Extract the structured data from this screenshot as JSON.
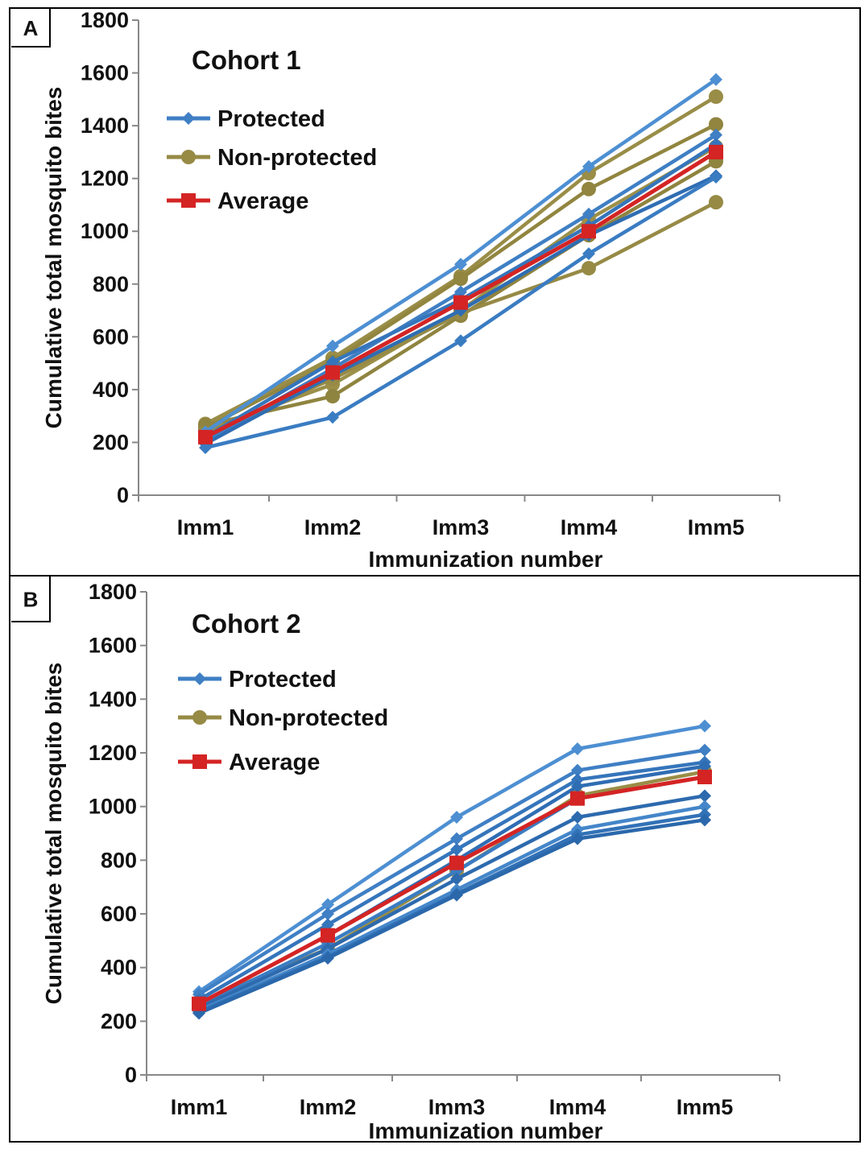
{
  "chart_data": [
    {
      "type": "line",
      "panel": "A",
      "title": "Cohort 1",
      "xlabel": "Immunization number",
      "ylabel": "Cumulative total mosquito bites",
      "categories": [
        "Imm1",
        "Imm2",
        "Imm3",
        "Imm4",
        "Imm5"
      ],
      "ylim": [
        0,
        1800
      ],
      "yticks": [
        "0",
        "200",
        "400",
        "600",
        "800",
        "1000",
        "1200",
        "1400",
        "1600",
        "1800"
      ],
      "grid": false,
      "legend_position": "top-left",
      "legend": [
        {
          "label": "Protected",
          "color": "#3f7fc4",
          "marker": "diamond"
        },
        {
          "label": "Non-protected",
          "color": "#968a45",
          "marker": "circle"
        },
        {
          "label": "Average",
          "color": "#d42424",
          "marker": "square"
        }
      ],
      "series": [
        {
          "group": "Protected",
          "values": [
            240,
            565,
            875,
            1245,
            1575
          ]
        },
        {
          "group": "Protected",
          "values": [
            205,
            480,
            770,
            1065,
            1365
          ]
        },
        {
          "group": "Protected",
          "values": [
            220,
            505,
            740,
            1020,
            1330
          ]
        },
        {
          "group": "Protected",
          "values": [
            195,
            455,
            700,
            985,
            1210
          ]
        },
        {
          "group": "Protected",
          "values": [
            180,
            295,
            585,
            915,
            1205
          ]
        },
        {
          "group": "Non-protected",
          "values": [
            270,
            520,
            830,
            1220,
            1510
          ]
        },
        {
          "group": "Non-protected",
          "values": [
            255,
            505,
            820,
            1160,
            1405
          ]
        },
        {
          "group": "Non-protected",
          "values": [
            245,
            420,
            700,
            1045,
            1320
          ]
        },
        {
          "group": "Non-protected",
          "values": [
            265,
            375,
            680,
            985,
            1265
          ]
        },
        {
          "group": "Non-protected",
          "values": [
            235,
            440,
            690,
            860,
            1110
          ]
        },
        {
          "group": "Average",
          "values": [
            220,
            465,
            730,
            1000,
            1300
          ]
        }
      ]
    },
    {
      "type": "line",
      "panel": "B",
      "title": "Cohort 2",
      "xlabel": "Immunization number",
      "ylabel": "Cumulative total mosquito bites",
      "categories": [
        "Imm1",
        "Imm2",
        "Imm3",
        "Imm4",
        "Imm5"
      ],
      "ylim": [
        0,
        1800
      ],
      "yticks": [
        "0",
        "200",
        "400",
        "600",
        "800",
        "1000",
        "1200",
        "1400",
        "1600",
        "1800"
      ],
      "grid": false,
      "legend_position": "top-left",
      "legend": [
        {
          "label": "Protected",
          "color": "#3f7fc4",
          "marker": "diamond"
        },
        {
          "label": "Non-protected",
          "color": "#968a45",
          "marker": "circle"
        },
        {
          "label": "Average",
          "color": "#d42424",
          "marker": "square"
        }
      ],
      "series": [
        {
          "group": "Protected",
          "values": [
            310,
            635,
            960,
            1215,
            1300
          ]
        },
        {
          "group": "Protected",
          "values": [
            300,
            600,
            880,
            1135,
            1210
          ]
        },
        {
          "group": "Protected",
          "values": [
            280,
            560,
            840,
            1100,
            1165
          ]
        },
        {
          "group": "Protected",
          "values": [
            265,
            520,
            800,
            1075,
            1150
          ]
        },
        {
          "group": "Protected",
          "values": [
            255,
            490,
            760,
            1030,
            1110
          ]
        },
        {
          "group": "Protected",
          "values": [
            250,
            470,
            730,
            960,
            1040
          ]
        },
        {
          "group": "Protected",
          "values": [
            240,
            450,
            690,
            915,
            1000
          ]
        },
        {
          "group": "Protected",
          "values": [
            235,
            440,
            675,
            895,
            970
          ]
        },
        {
          "group": "Protected",
          "values": [
            230,
            435,
            670,
            880,
            950
          ]
        },
        {
          "group": "Non-protected",
          "values": [
            270,
            470,
            760,
            1040,
            1130
          ]
        },
        {
          "group": "Average",
          "values": [
            265,
            520,
            790,
            1030,
            1110
          ]
        }
      ]
    }
  ]
}
